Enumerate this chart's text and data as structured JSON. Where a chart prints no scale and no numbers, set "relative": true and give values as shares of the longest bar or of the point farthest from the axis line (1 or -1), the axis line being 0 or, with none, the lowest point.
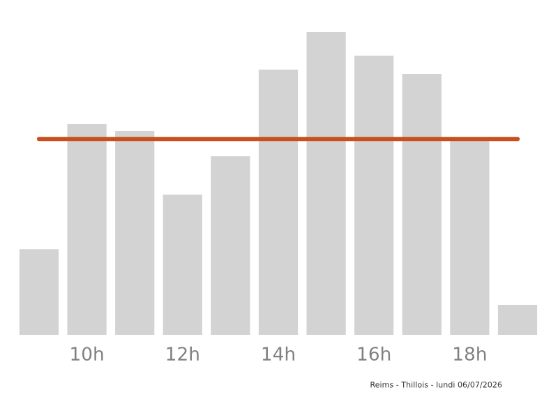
{
  "chart_data": {
    "type": "bar",
    "relative": true,
    "categories": [
      null,
      "10h",
      null,
      "12h",
      null,
      "14h",
      null,
      "16h",
      null,
      "18h",
      null
    ],
    "values": [
      0.283,
      0.696,
      0.673,
      0.463,
      0.59,
      0.876,
      1,
      0.922,
      0.862,
      0.645,
      0.099
    ],
    "color": "#d3d3d3",
    "ref_lines": [
      {
        "axis": "y",
        "value": 0.647,
        "color": "#c8501e"
      }
    ],
    "annotations": [
      "Reims - Thillois - lundi 06/07/2026"
    ],
    "grid": false,
    "legend": false
  }
}
